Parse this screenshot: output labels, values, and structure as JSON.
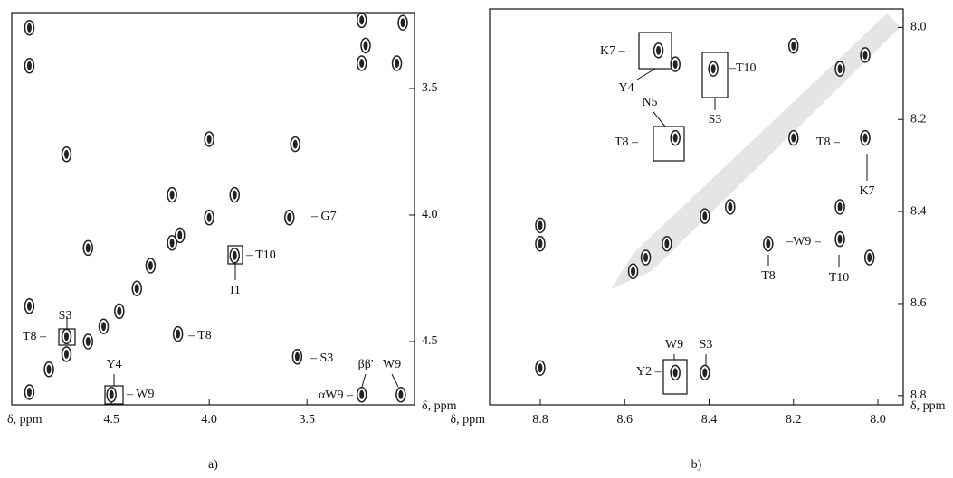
{
  "chart_data": [
    {
      "type": "scatter",
      "caption": "a)",
      "xlabel": "δ, ppm",
      "ylabel": "δ, ppm",
      "xlim": [
        5.01,
        2.95
      ],
      "ylim": [
        3.2,
        4.75
      ],
      "xticks": [
        4.5,
        {
          "value": 4,
          "label": "4.0"
        },
        3.5
      ],
      "yticks": [
        3.5,
        {
          "value": 4,
          "label": "4.0"
        },
        4.5
      ],
      "color": "#222",
      "x": [
        4.92,
        4.92,
        3.22,
        3.2,
        3.01,
        3.04,
        3.22,
        4.73,
        4.0,
        3.56,
        4.19,
        3.87,
        4.0,
        3.59,
        4.62,
        3.87,
        4.19,
        4.15,
        4.3,
        4.37,
        4.46,
        4.54,
        4.62,
        4.73,
        4.73,
        4.82,
        4.92,
        4.92,
        4.16,
        3.55,
        4.5,
        3.22,
        3.02
      ],
      "y": [
        3.26,
        3.41,
        3.23,
        3.33,
        3.24,
        3.4,
        3.4,
        3.76,
        3.7,
        3.72,
        3.92,
        3.92,
        4.01,
        4.01,
        4.13,
        4.16,
        4.11,
        4.08,
        4.2,
        4.29,
        4.38,
        4.44,
        4.5,
        4.48,
        4.55,
        4.61,
        4.36,
        4.7,
        4.47,
        4.56,
        4.71,
        4.71,
        4.71
      ],
      "annotations": [
        "S3",
        "T8 –",
        "Y4",
        "– W9",
        "– T8",
        "– S3",
        "– G7",
        "– T10",
        "I1",
        "ββ'",
        "W9",
        "αW9 –"
      ]
    },
    {
      "type": "scatter",
      "caption": "b)",
      "xlabel": "δ, ppm",
      "ylabel": "δ, ppm",
      "xlim": [
        8.92,
        7.94
      ],
      "ylim": [
        7.96,
        8.82
      ],
      "xticks": [
        8.8,
        8.6,
        8.4,
        8.2,
        {
          "value": 8,
          "label": "8.0"
        }
      ],
      "yticks": [
        {
          "value": 8,
          "label": "8.0"
        },
        8.2,
        8.4,
        8.6,
        8.8
      ],
      "color": "#222",
      "x": [
        8.52,
        8.48,
        8.39,
        8.2,
        8.03,
        8.09,
        8.2,
        8.03,
        8.48,
        8.35,
        8.41,
        8.5,
        8.55,
        8.58,
        8.8,
        8.8,
        8.26,
        8.09,
        8.09,
        8.02,
        8.8,
        8.48,
        8.41
      ],
      "y": [
        8.05,
        8.08,
        8.09,
        8.04,
        8.06,
        8.09,
        8.24,
        8.24,
        8.24,
        8.39,
        8.41,
        8.47,
        8.5,
        8.53,
        8.43,
        8.47,
        8.47,
        8.46,
        8.39,
        8.5,
        8.74,
        8.75,
        8.75
      ],
      "annotations": [
        "K7 –",
        "Y4",
        "N5",
        "–T10",
        "S3",
        "T8 –",
        "T8 –",
        "K7",
        "T8",
        "–W9 –",
        "T10",
        "W9",
        "S3",
        "Y2 –"
      ]
    }
  ]
}
